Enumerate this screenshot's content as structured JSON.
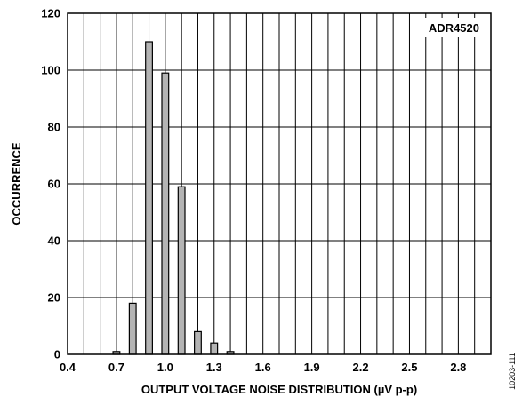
{
  "chart_data": {
    "type": "bar",
    "annotation": "ADR4520",
    "xlabel": "OUTPUT VOLTAGE NOISE DISTRIBUTION (µV p-p)",
    "ylabel": "OCCURRENCE",
    "figure_id": "10203-111",
    "xlim": [
      0.4,
      3.0
    ],
    "ylim": [
      0,
      120
    ],
    "x_ticks": [
      0.4,
      0.7,
      1.0,
      1.3,
      1.6,
      1.9,
      2.2,
      2.5,
      2.8
    ],
    "x_tick_labels": [
      "0.4",
      "0.7",
      "1.0",
      "1.3",
      "1.6",
      "1.9",
      "2.2",
      "2.5",
      "2.8"
    ],
    "y_ticks": [
      0,
      20,
      40,
      60,
      80,
      100,
      120
    ],
    "y_tick_labels": [
      "0",
      "20",
      "40",
      "60",
      "80",
      "100",
      "120"
    ],
    "x_gridline_step": 0.1,
    "grid": true,
    "bar_color": "#b4b4b4",
    "categories": [
      0.7,
      0.8,
      0.9,
      1.0,
      1.1,
      1.2,
      1.3,
      1.4
    ],
    "values": [
      1,
      18,
      110,
      99,
      59,
      8,
      4,
      1
    ]
  }
}
